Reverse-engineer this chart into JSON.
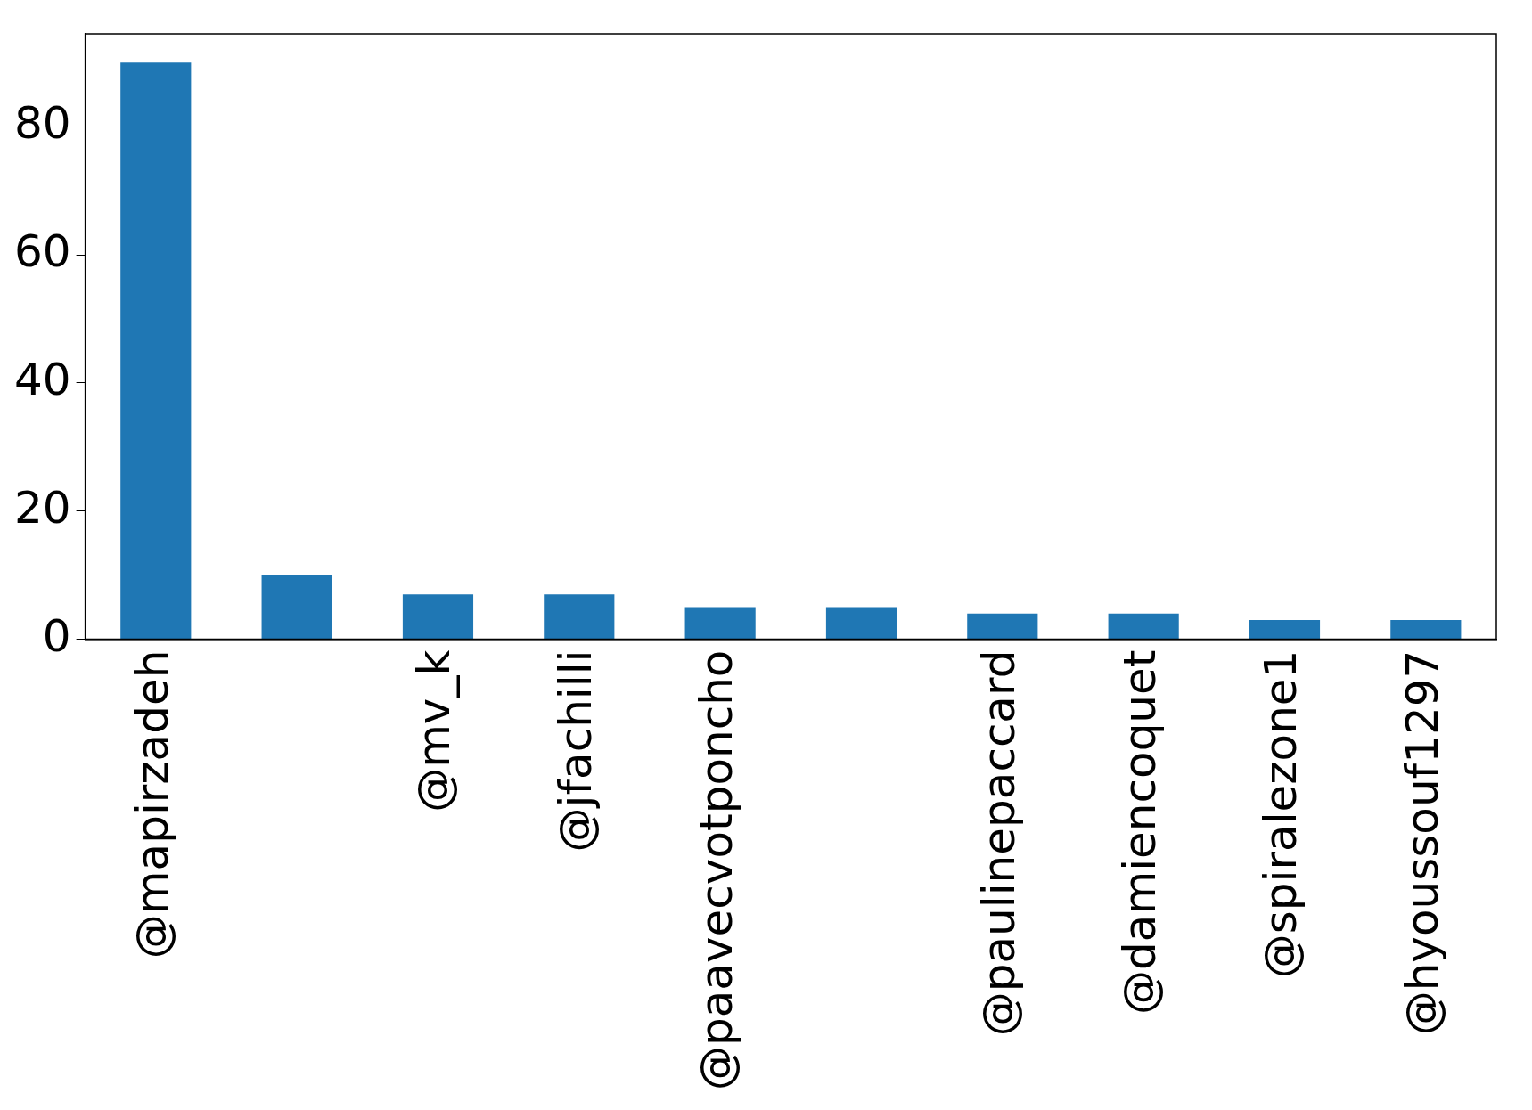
{
  "chart_data": {
    "type": "bar",
    "categories": [
      "@mapirzadeh",
      null,
      "@mv_k",
      "@jfachilli",
      "@paavecvotponcho",
      null,
      "@paulinepaccard",
      "@damiencoquet",
      "@spiralezone1",
      "@hyoussouf1297"
    ],
    "values": [
      90,
      10,
      7,
      7,
      5,
      5,
      4,
      4,
      3,
      3
    ],
    "color": "#1f77b4",
    "ylim": [
      0,
      94.5
    ],
    "yticks": [
      0,
      20,
      40,
      60,
      80
    ],
    "legend": false
  }
}
